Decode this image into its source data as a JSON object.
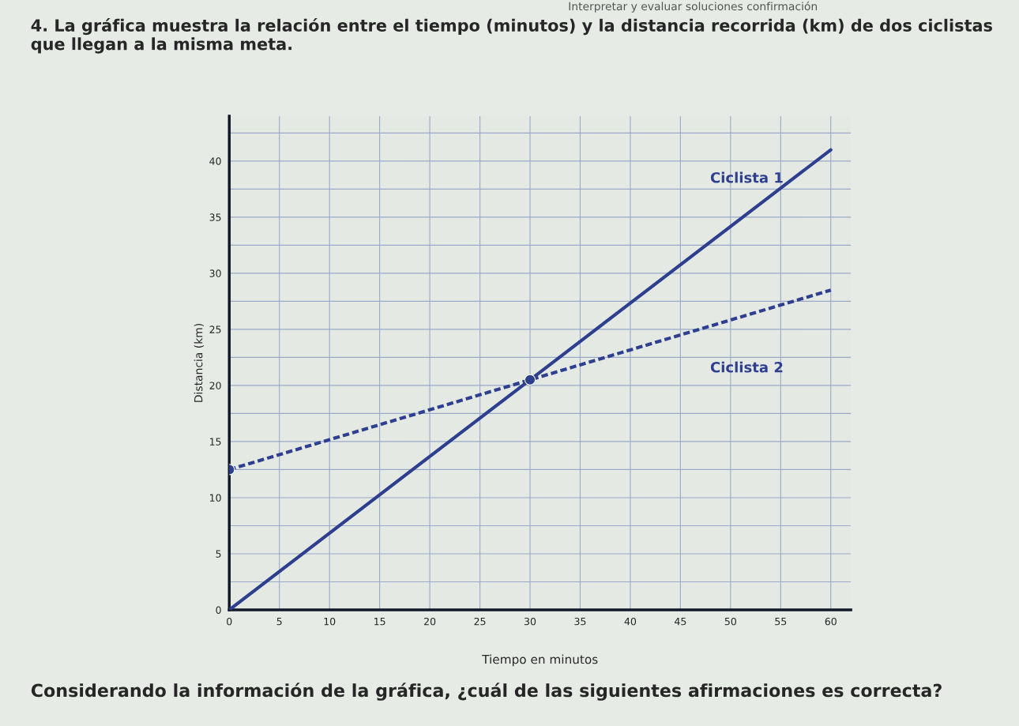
{
  "chart_data": {
    "type": "line",
    "title": "4. La gráfica muestra la relación entre el tiempo (minutos) y la distancia recorrida (km) de dos ciclistas que llegan a la misma meta.",
    "xlabel": "Tiempo en minutos",
    "ylabel": "Distancia (km)",
    "x": [
      0,
      30,
      60
    ],
    "series": [
      {
        "name": "Ciclista 1",
        "color": "#2e3f8f",
        "values": [
          0,
          20.5,
          41
        ],
        "line_style": "solid",
        "marker": "none"
      },
      {
        "name": "Ciclista 2",
        "color": "#2e3f8f",
        "values": [
          12.5,
          20.5,
          28.5
        ],
        "line_style": "dashed",
        "marker": "none"
      },
      {
        "type": "scatter",
        "color": "#2e3f8f",
        "x": [
          0,
          30
        ],
        "values": [
          12.5,
          20.5
        ],
        "marker": "circle"
      }
    ],
    "xlim": [
      0,
      62
    ],
    "ylim": [
      0,
      44
    ],
    "xticks": [
      0,
      5,
      10,
      15,
      20,
      25,
      30,
      35,
      40,
      45,
      50,
      55,
      60
    ],
    "yticks": [
      0,
      {
        "value": 2.5,
        "label": null
      },
      5,
      {
        "value": 7.5,
        "label": null
      },
      10,
      {
        "value": 12.5,
        "label": null
      },
      15,
      {
        "value": 17.5,
        "label": null
      },
      20,
      {
        "value": 22.5,
        "label": null
      },
      25,
      {
        "value": 27.5,
        "label": null
      },
      30,
      {
        "value": 32.5,
        "label": null
      },
      35,
      {
        "value": 37.5,
        "label": null
      },
      40,
      {
        "value": 42.5,
        "label": null
      }
    ],
    "grid": true,
    "legend": false,
    "annotations": [
      "Interpretar y evaluar soluciones confirmación",
      "Considerando la información de la gráfica, ¿cuál de las siguientes afirmaciones es correcta?"
    ]
  }
}
